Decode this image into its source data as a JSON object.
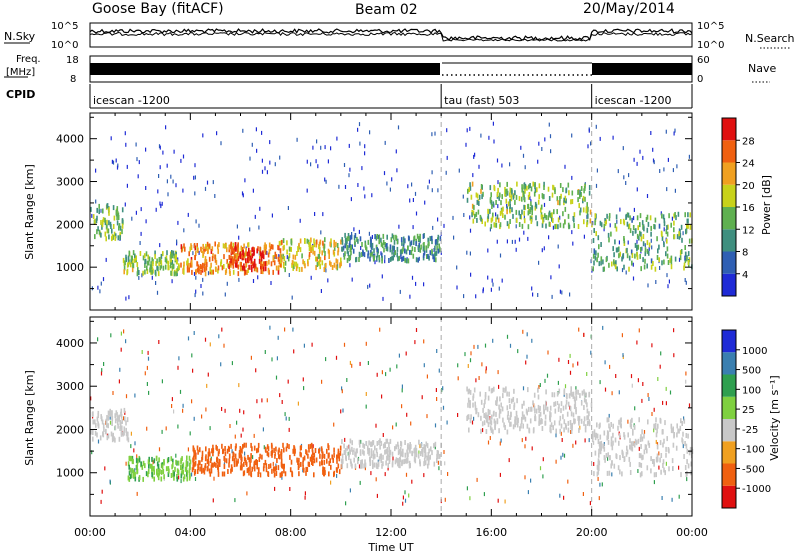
{
  "header": {
    "station": "Goose Bay (fitACF)",
    "beam": "Beam 02",
    "date": "20/May/2014"
  },
  "aux_panels": {
    "nsky_label": "N.Sky",
    "nsky_ticks": [
      "10^5",
      "10^0"
    ],
    "nsearch_label": "N.Search",
    "nsearch_ticks": [
      "10^5",
      "10^0"
    ],
    "freq_label_line1": "Freq.",
    "freq_label_line2": "[MHz]",
    "freq_ticks": [
      "18",
      "8"
    ],
    "nave_label": "Nave",
    "nave_ticks": [
      "60",
      "0"
    ],
    "cpid_label": "CPID",
    "cpid_segments": [
      {
        "label": "icescan -1200",
        "start_h": 0,
        "end_h": 14
      },
      {
        "label": "tau (fast) 503",
        "start_h": 14,
        "end_h": 20
      },
      {
        "label": "icescan -1200",
        "start_h": 20,
        "end_h": 24
      }
    ]
  },
  "power_panel": {
    "ylabel": "Slant Range [km]",
    "cbar_label": "Power [dB]",
    "cbar_ticks": [
      "28",
      "24",
      "20",
      "16",
      "12",
      "8",
      "4"
    ]
  },
  "velocity_panel": {
    "ylabel": "Slant Range [km]",
    "cbar_label": "Velocity [m s⁻¹]",
    "cbar_ticks": [
      "1000",
      "500",
      "100",
      "25",
      "-25",
      "-100",
      "-500",
      "-1000"
    ]
  },
  "xaxis": {
    "label": "Time UT",
    "ticks": [
      "00:00",
      "04:00",
      "08:00",
      "12:00",
      "16:00",
      "20:00",
      "00:00"
    ]
  },
  "colors": {
    "power_scale": [
      "#1f2bd6",
      "#2f5fb3",
      "#3f8f7f",
      "#5fb050",
      "#c8d21a",
      "#f0a020",
      "#f06010",
      "#e01010"
    ],
    "velocity_scale": [
      "#1f2bd6",
      "#3a7fb0",
      "#2f9f4f",
      "#7fd040",
      "#c8c8c8",
      "#f0a020",
      "#f06010",
      "#e01010"
    ]
  },
  "chart_data": [
    {
      "type": "heatmap",
      "title": "Power",
      "xlabel": "Time UT",
      "ylabel": "Slant Range [km]",
      "xlim": [
        0,
        24
      ],
      "ylim": [
        0,
        4600
      ],
      "yticks": [
        1000,
        2000,
        3000,
        4000
      ],
      "colorbar": {
        "label": "Power [dB]",
        "range": [
          0,
          30
        ],
        "ticks": [
          4,
          8,
          12,
          16,
          20,
          24,
          28
        ]
      },
      "regions": [
        {
          "t_start": 0.0,
          "t_end": 1.3,
          "range_start": 1700,
          "range_end": 2500,
          "level": 12
        },
        {
          "t_start": 1.3,
          "t_end": 3.5,
          "range_start": 900,
          "range_end": 1400,
          "level": 14
        },
        {
          "t_start": 3.5,
          "t_end": 7.5,
          "range_start": 900,
          "range_end": 1600,
          "level": 22
        },
        {
          "t_start": 5.5,
          "t_end": 7.0,
          "range_start": 1000,
          "range_end": 1500,
          "level": 27
        },
        {
          "t_start": 7.5,
          "t_end": 10.0,
          "range_start": 1000,
          "range_end": 1700,
          "level": 18
        },
        {
          "t_start": 10.0,
          "t_end": 14.0,
          "range_start": 1200,
          "range_end": 1800,
          "level": 10
        },
        {
          "t_start": 15.0,
          "t_end": 20.0,
          "range_start": 2000,
          "range_end": 3000,
          "level": 14
        },
        {
          "t_start": 20.0,
          "t_end": 24.0,
          "range_start": 1000,
          "range_end": 2300,
          "level": 12
        }
      ]
    },
    {
      "type": "heatmap",
      "title": "Velocity",
      "xlabel": "Time UT",
      "ylabel": "Slant Range [km]",
      "xlim": [
        0,
        24
      ],
      "ylim": [
        0,
        4600
      ],
      "yticks": [
        1000,
        2000,
        3000,
        4000
      ],
      "colorbar": {
        "label": "Velocity [m s⁻¹]",
        "range": [
          -1000,
          1000
        ],
        "ticks": [
          1000,
          500,
          100,
          25,
          -25,
          -100,
          -500,
          -1000
        ]
      },
      "regions": [
        {
          "t_start": 0.0,
          "t_end": 1.5,
          "range_start": 1800,
          "range_end": 2500,
          "level": 0
        },
        {
          "t_start": 1.5,
          "t_end": 4.0,
          "range_start": 900,
          "range_end": 1400,
          "level": 80
        },
        {
          "t_start": 4.0,
          "t_end": 10.0,
          "range_start": 1000,
          "range_end": 1700,
          "level": -200
        },
        {
          "t_start": 10.0,
          "t_end": 14.0,
          "range_start": 1200,
          "range_end": 1800,
          "level": 0
        },
        {
          "t_start": 15.0,
          "t_end": 20.0,
          "range_start": 2000,
          "range_end": 3000,
          "level": 0
        },
        {
          "t_start": 20.0,
          "t_end": 24.0,
          "range_start": 1000,
          "range_end": 2300,
          "level": 0
        }
      ]
    }
  ]
}
